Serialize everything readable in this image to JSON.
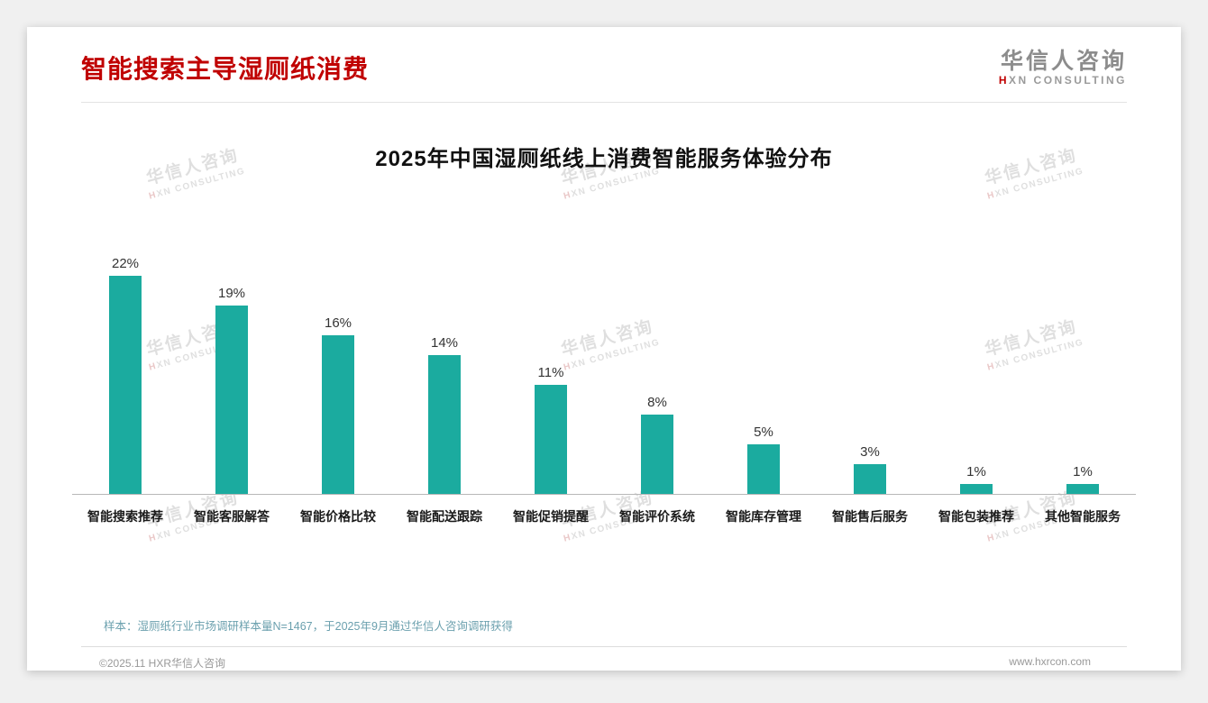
{
  "header": {
    "title": "智能搜索主导湿厕纸消费",
    "logo": {
      "name_cn": "华信人咨询",
      "en_accent": "H",
      "en_rest": "XN CONSULTING"
    }
  },
  "watermark": {
    "line1": "华信人咨询",
    "line2": "HXN CONSULTING"
  },
  "colors": {
    "bar": "#1bab9f",
    "title_red": "#c00000",
    "note_teal": "#6ba0ae"
  },
  "chart_data": {
    "type": "bar",
    "title": "2025年中国湿厕纸线上消费智能服务体验分布",
    "categories": [
      "智能搜索推荐",
      "智能客服解答",
      "智能价格比较",
      "智能配送跟踪",
      "智能促销提醒",
      "智能评价系统",
      "智能库存管理",
      "智能售后服务",
      "智能包装推荐",
      "其他智能服务"
    ],
    "values": [
      22,
      19,
      16,
      14,
      11,
      8,
      5,
      3,
      1,
      1
    ],
    "unit": "%",
    "xlabel": "",
    "ylabel": "",
    "ylim": [
      0,
      24
    ],
    "grid": false,
    "legend": "none",
    "bar_color": "#1bab9f"
  },
  "footer": {
    "note": "样本：湿厕纸行业市场调研样本量N=1467，于2025年9月通过华信人咨询调研获得",
    "left": "©2025.11 HXR华信人咨询",
    "right": "www.hxrcon.com"
  }
}
